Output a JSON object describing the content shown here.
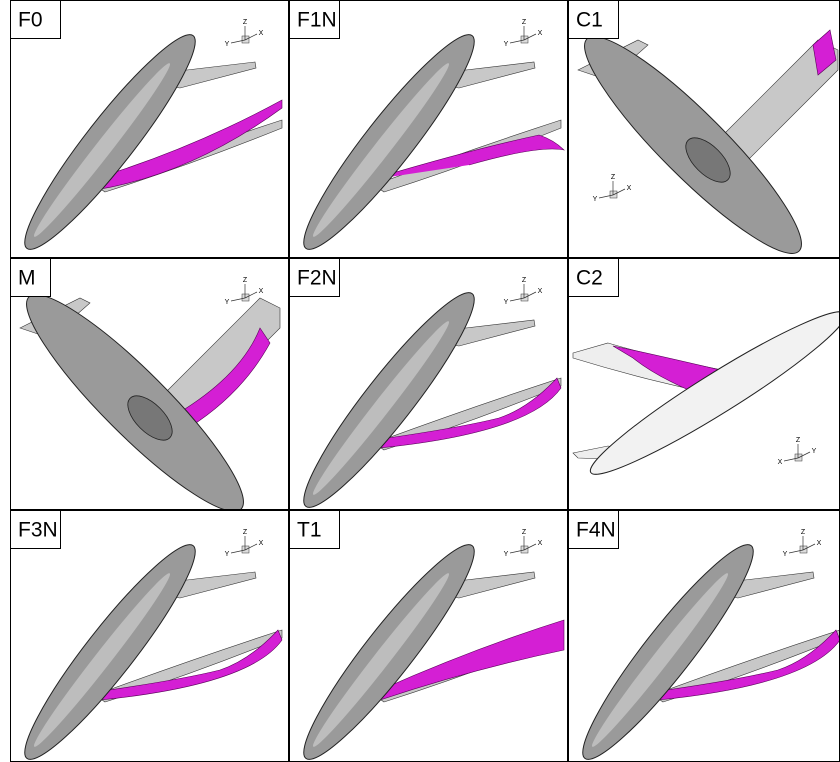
{
  "panels": [
    {
      "label": "F0",
      "triad": [
        "Z",
        "Y",
        "X"
      ]
    },
    {
      "label": "F1N",
      "triad": [
        "Z",
        "Y",
        "X"
      ]
    },
    {
      "label": "C1",
      "triad": [
        "Z",
        "Y",
        "X"
      ]
    },
    {
      "label": "M",
      "triad": [
        "Z",
        "Y",
        "X"
      ]
    },
    {
      "label": "F2N",
      "triad": [
        "Z",
        "Y",
        "X"
      ]
    },
    {
      "label": "C2",
      "triad": [
        "Z",
        "X",
        "Y"
      ]
    },
    {
      "label": "F3N",
      "triad": [
        "Z",
        "Y",
        "X"
      ]
    },
    {
      "label": "T1",
      "triad": [
        "Z",
        "Y",
        "X"
      ]
    },
    {
      "label": "F4N",
      "triad": [
        "Z",
        "Y",
        "X"
      ]
    }
  ]
}
